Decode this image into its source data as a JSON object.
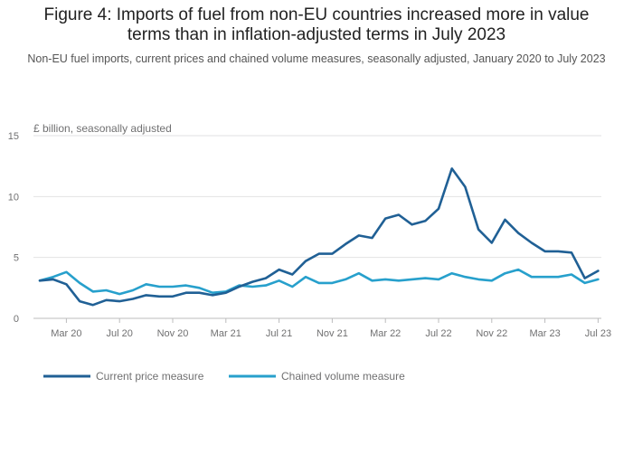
{
  "title_line1": "Figure 4: Imports of fuel from non-EU countries increased more in value",
  "title_line2": "terms than in inflation-adjusted terms in July 2023",
  "subtitle": "Non-EU fuel imports, current prices and chained volume measures, seasonally adjusted, January 2020 to July 2023",
  "chart_data": {
    "type": "line",
    "ylabel": "£ billion, seasonally adjusted",
    "ylim": [
      0,
      15
    ],
    "y_ticks": [
      0,
      5,
      10,
      15
    ],
    "x_tick_labels": [
      "Mar 20",
      "Jul 20",
      "Nov 20",
      "Mar 21",
      "Jul 21",
      "Nov 21",
      "Mar 22",
      "Jul 22",
      "Nov 22",
      "Mar 23",
      "Jul 23"
    ],
    "x_tick_indices": [
      2,
      6,
      10,
      14,
      18,
      22,
      26,
      30,
      34,
      38,
      42
    ],
    "x": [
      "Jan 20",
      "Feb 20",
      "Mar 20",
      "Apr 20",
      "May 20",
      "Jun 20",
      "Jul 20",
      "Aug 20",
      "Sep 20",
      "Oct 20",
      "Nov 20",
      "Dec 20",
      "Jan 21",
      "Feb 21",
      "Mar 21",
      "Apr 21",
      "May 21",
      "Jun 21",
      "Jul 21",
      "Aug 21",
      "Sep 21",
      "Oct 21",
      "Nov 21",
      "Dec 21",
      "Jan 22",
      "Feb 22",
      "Mar 22",
      "Apr 22",
      "May 22",
      "Jun 22",
      "Jul 22",
      "Aug 22",
      "Sep 22",
      "Oct 22",
      "Nov 22",
      "Dec 22",
      "Jan 23",
      "Feb 23",
      "Mar 23",
      "Apr 23",
      "May 23",
      "Jun 23",
      "Jul 23"
    ],
    "grid": true,
    "legend_position": "bottom-left",
    "series": [
      {
        "name": "Current price measure",
        "color": "#206095",
        "values": [
          3.1,
          3.2,
          2.8,
          1.4,
          1.1,
          1.5,
          1.4,
          1.6,
          1.9,
          1.8,
          1.8,
          2.1,
          2.1,
          1.9,
          2.1,
          2.6,
          3.0,
          3.3,
          4.0,
          3.6,
          4.7,
          5.3,
          5.3,
          6.1,
          6.8,
          6.6,
          8.2,
          8.5,
          7.7,
          8.0,
          9.0,
          12.3,
          10.8,
          7.3,
          6.2,
          8.1,
          7.0,
          6.2,
          5.5,
          5.5,
          5.4,
          3.3,
          3.9
        ]
      },
      {
        "name": "Chained volume measure",
        "color": "#27a0cc",
        "values": [
          3.1,
          3.4,
          3.8,
          2.9,
          2.2,
          2.3,
          2.0,
          2.3,
          2.8,
          2.6,
          2.6,
          2.7,
          2.5,
          2.1,
          2.2,
          2.7,
          2.6,
          2.7,
          3.1,
          2.6,
          3.4,
          2.9,
          2.9,
          3.2,
          3.7,
          3.1,
          3.2,
          3.1,
          3.2,
          3.3,
          3.2,
          3.7,
          3.4,
          3.2,
          3.1,
          3.7,
          4.0,
          3.4,
          3.4,
          3.4,
          3.6,
          2.9,
          3.2
        ]
      }
    ]
  }
}
